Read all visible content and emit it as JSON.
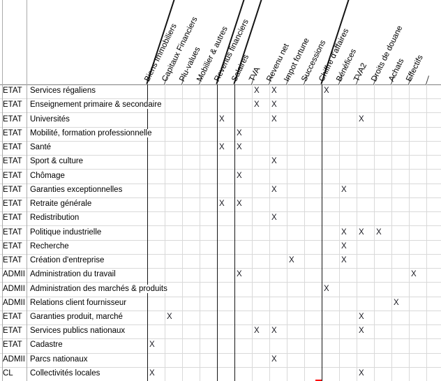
{
  "sheet": {
    "mark_symbol": "X",
    "columns": [
      "Biens Immobiliers",
      "Capitaux Financiers",
      "Plu-values",
      "Mobilier & autres",
      "Revenus financiers",
      "Salaires",
      "TVA",
      "Revenu net",
      "Impot fortune",
      "Successions",
      "Chiffre d'affaires",
      "Bénéfices",
      "TVA2",
      "Droits de douane",
      "Achats",
      "Effectifs"
    ],
    "column_group_separators_before": [
      0,
      4,
      5,
      10
    ],
    "rows": [
      {
        "type": "ETAT",
        "label": "Services régaliens",
        "marks": [
          6,
          7,
          10
        ]
      },
      {
        "type": "ETAT",
        "label": "Enseignement primaire & secondaire",
        "marks": [
          6,
          7
        ]
      },
      {
        "type": "ETAT",
        "label": "Universités",
        "marks": [
          4,
          7,
          12
        ]
      },
      {
        "type": "ETAT",
        "label": "Mobilité, formation professionnelle",
        "marks": [
          5
        ]
      },
      {
        "type": "ETAT",
        "label": "Santé",
        "marks": [
          4,
          5
        ]
      },
      {
        "type": "ETAT",
        "label": "Sport & culture",
        "marks": [
          7
        ]
      },
      {
        "type": "ETAT",
        "label": "Chômage",
        "marks": [
          5
        ]
      },
      {
        "type": "ETAT",
        "label": "Garanties exceptionnelles",
        "marks": [
          7,
          11
        ]
      },
      {
        "type": "ETAT",
        "label": "Retraite générale",
        "marks": [
          4,
          5
        ]
      },
      {
        "type": "ETAT",
        "label": "Redistribution",
        "marks": [
          7
        ]
      },
      {
        "type": "ETAT",
        "label": "Politique industrielle",
        "marks": [
          11,
          12,
          13
        ]
      },
      {
        "type": "ETAT",
        "label": "Recherche",
        "marks": [
          11
        ]
      },
      {
        "type": "ETAT",
        "label": "Création d'entreprise",
        "marks": [
          8,
          11
        ]
      },
      {
        "type": "ADMII",
        "label": "Administration du travail",
        "marks": [
          5,
          15
        ]
      },
      {
        "type": "ADMII",
        "label": "Administration des marchés & produits",
        "marks": [
          10
        ]
      },
      {
        "type": "ADMII",
        "label": "Relations client fournisseur",
        "marks": [
          14
        ]
      },
      {
        "type": "ETAT",
        "label": "Garanties produit, marché",
        "marks": [
          1,
          12
        ]
      },
      {
        "type": "ETAT",
        "label": "Services publics nationaux",
        "marks": [
          6,
          7,
          12
        ]
      },
      {
        "type": "ETAT",
        "label": "Cadastre",
        "marks": [
          0
        ]
      },
      {
        "type": "ADMII",
        "label": "Parcs nationaux",
        "marks": [
          7
        ]
      },
      {
        "type": "CL",
        "label": "Collectivités locales",
        "marks": [
          0,
          12
        ]
      }
    ],
    "colors": {
      "gridline": "#d9d9d9",
      "header_rule": "#7f7f7f",
      "outer_line": "#ababab",
      "group_line": "#141414",
      "stub_line": "#3c3c3c",
      "text": "#000000",
      "mark": "#16161e",
      "annotation": "#ff0000"
    }
  }
}
